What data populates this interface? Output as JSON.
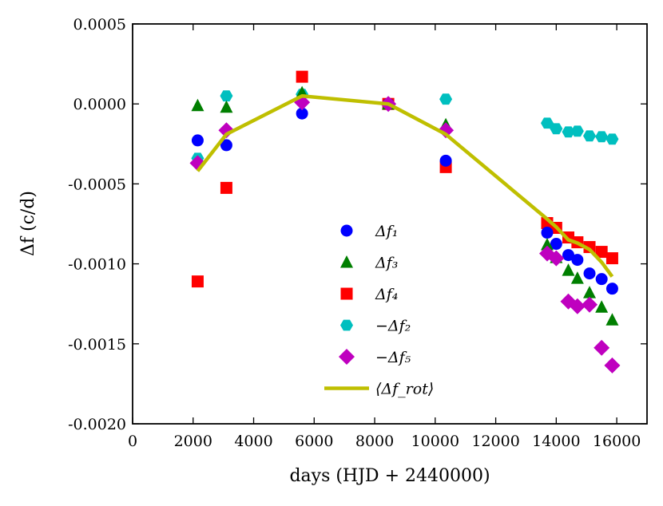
{
  "chart_data": {
    "type": "scatter",
    "xlabel": "days (HJD + 2440000)",
    "ylabel": "Δf (c/d)",
    "xlim": [
      0,
      17000
    ],
    "ylim": [
      -0.002,
      0.0005
    ],
    "xticks": [
      0,
      2000,
      4000,
      6000,
      8000,
      10000,
      12000,
      14000,
      16000
    ],
    "xtick_labels": [
      "0",
      "2000",
      "4000",
      "6000",
      "8000",
      "10000",
      "12000",
      "14000",
      "16000"
    ],
    "yticks": [
      0.0005,
      0.0,
      -0.0005,
      -0.001,
      -0.0015,
      -0.002
    ],
    "ytick_labels": [
      "0.0005",
      "0.0000",
      "-0.0005",
      "-0.0010",
      "-0.0015",
      "-0.0020"
    ],
    "legend_position": "center-right",
    "series": [
      {
        "name": "Δf₁",
        "marker": "circle",
        "color": "#0000ff",
        "x": [
          2150,
          3100,
          5600,
          8450,
          10350,
          13700,
          14000,
          14400,
          14700,
          15100,
          15500,
          15850
        ],
        "y": [
          -0.000228,
          -0.000258,
          -6e-05,
          0.0,
          -0.000355,
          -0.000805,
          -0.000875,
          -0.000945,
          -0.000975,
          -0.00106,
          -0.001095,
          -0.001155
        ]
      },
      {
        "name": "Δf₃",
        "marker": "triangle",
        "color": "#007f00",
        "x": [
          2150,
          3100,
          5600,
          8450,
          10350,
          13700,
          14000,
          14400,
          14700,
          15100,
          15500,
          15850
        ],
        "y": [
          -1e-05,
          -2e-05,
          7e-05,
          0.0,
          -0.00013,
          -0.00088,
          -0.00096,
          -0.00104,
          -0.00109,
          -0.00118,
          -0.00127,
          -0.00135
        ]
      },
      {
        "name": "Δf₄",
        "marker": "square",
        "color": "#ff0000",
        "x": [
          2150,
          3100,
          5600,
          8450,
          10350,
          13700,
          14000,
          14400,
          14700,
          15100,
          15500,
          15850
        ],
        "y": [
          -0.00111,
          -0.000525,
          0.00017,
          0.0,
          -0.000395,
          -0.000745,
          -0.000775,
          -0.000835,
          -0.000865,
          -0.000895,
          -0.000925,
          -0.000965
        ]
      },
      {
        "name": "−Δf₂",
        "marker": "hexagon",
        "color": "#00bfbf",
        "x": [
          2150,
          3100,
          5600,
          8450,
          10350,
          13700,
          14000,
          14400,
          14700,
          15100,
          15500,
          15850
        ],
        "y": [
          -0.00034,
          5e-05,
          6e-05,
          0.0,
          3e-05,
          -0.00012,
          -0.000155,
          -0.000175,
          -0.00017,
          -0.0002,
          -0.000205,
          -0.00022
        ]
      },
      {
        "name": "−Δf₅",
        "marker": "diamond",
        "color": "#bf00bf",
        "x": [
          2150,
          3100,
          5600,
          8450,
          10350,
          13700,
          14000,
          14400,
          14700,
          15100,
          15500,
          15850
        ],
        "y": [
          -0.00037,
          -0.000165,
          1e-05,
          0.0,
          -0.000165,
          -0.000935,
          -0.000965,
          -0.001235,
          -0.001265,
          -0.001255,
          -0.001525,
          -0.001635
        ]
      },
      {
        "name": "⟨Δf_rot⟩",
        "marker": "line",
        "color": "#bfbf00",
        "x": [
          2150,
          3100,
          5600,
          8450,
          10350,
          13700,
          14000,
          14400,
          14700,
          15100,
          15500,
          15850
        ],
        "y": [
          -0.00042,
          -0.00019,
          5e-05,
          0.0,
          -0.00019,
          -0.00072,
          -0.00077,
          -0.00085,
          -0.00087,
          -0.00091,
          -0.00099,
          -0.00108
        ]
      }
    ]
  }
}
